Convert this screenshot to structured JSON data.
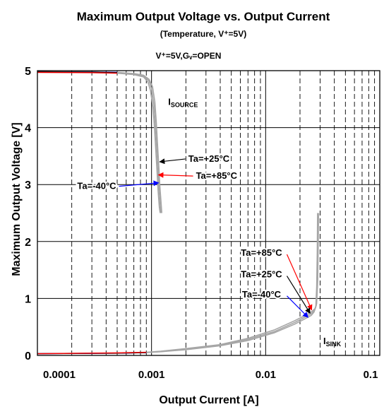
{
  "chart_data": {
    "type": "line",
    "title": "Maximum Output Voltage vs. Output Current",
    "subtitle": "(Temperature, V⁺=5V)",
    "condition": "V⁺=5V,Gᵥ=OPEN",
    "xlabel": "Output Current [A]",
    "ylabel": "Maximum Output Voltage [V]",
    "x_scale": "log",
    "xlim": [
      0.0001,
      0.1
    ],
    "ylim": [
      0,
      5
    ],
    "x_ticks": [
      "0.0001",
      "0.001",
      "0.01",
      "0.1"
    ],
    "y_ticks": [
      "0",
      "1",
      "2",
      "3",
      "4",
      "5"
    ],
    "grid": true,
    "colors": {
      "-40": "#0000ff",
      "+25": "#000000",
      "+85": "#ff0000",
      "curve": "#a6a6a6"
    },
    "series": [
      {
        "name": "Ta=-40°C",
        "group": "ISOURCE",
        "x": [
          0.0001,
          0.0003,
          0.0005,
          0.0007,
          0.00085,
          0.00095,
          0.00102,
          0.00107,
          0.0011,
          0.00113,
          0.00116,
          0.00118,
          0.00121,
          0.00123
        ],
        "y": [
          4.98,
          4.975,
          4.97,
          4.95,
          4.92,
          4.85,
          4.72,
          4.45,
          4.1,
          3.7,
          3.3,
          3.0,
          2.7,
          2.5
        ]
      },
      {
        "name": "Ta=+25°C",
        "group": "ISOURCE",
        "x": [
          0.0001,
          0.0003,
          0.0005,
          0.0007,
          0.00085,
          0.00095,
          0.001,
          0.00105,
          0.00108,
          0.00111,
          0.00114,
          0.00116,
          0.00119,
          0.00121
        ],
        "y": [
          4.98,
          4.975,
          4.965,
          4.94,
          4.91,
          4.82,
          4.68,
          4.4,
          4.05,
          3.65,
          3.25,
          2.95,
          2.65,
          2.5
        ]
      },
      {
        "name": "Ta=+85°C",
        "group": "ISOURCE",
        "x": [
          0.0001,
          0.0003,
          0.0005,
          0.0007,
          0.00085,
          0.00093,
          0.00098,
          0.00103,
          0.00106,
          0.00109,
          0.00112,
          0.00114,
          0.00117,
          0.00119
        ],
        "y": [
          4.97,
          4.965,
          4.955,
          4.93,
          4.89,
          4.8,
          4.65,
          4.35,
          4.0,
          3.6,
          3.2,
          2.9,
          2.6,
          2.5
        ]
      },
      {
        "name": "Ta=-40°C",
        "group": "ISINK",
        "x": [
          0.0001,
          0.0005,
          0.0009,
          0.0012,
          0.002,
          0.004,
          0.007,
          0.012,
          0.018,
          0.022,
          0.025,
          0.0265,
          0.0275,
          0.028,
          0.0283,
          0.0285
        ],
        "y": [
          0.03,
          0.04,
          0.05,
          0.065,
          0.1,
          0.17,
          0.26,
          0.4,
          0.55,
          0.64,
          0.7,
          0.76,
          0.85,
          1.2,
          1.8,
          2.5
        ]
      },
      {
        "name": "Ta=+25°C",
        "group": "ISINK",
        "x": [
          0.0001,
          0.0005,
          0.0009,
          0.0012,
          0.002,
          0.004,
          0.007,
          0.012,
          0.018,
          0.022,
          0.025,
          0.0268,
          0.0278,
          0.0283,
          0.0286,
          0.0288
        ],
        "y": [
          0.03,
          0.04,
          0.05,
          0.07,
          0.11,
          0.18,
          0.28,
          0.42,
          0.58,
          0.67,
          0.73,
          0.79,
          0.88,
          1.25,
          1.85,
          2.5
        ]
      },
      {
        "name": "Ta=+85°C",
        "group": "ISINK",
        "x": [
          0.0001,
          0.0005,
          0.0009,
          0.0012,
          0.002,
          0.004,
          0.007,
          0.012,
          0.018,
          0.022,
          0.025,
          0.027,
          0.028,
          0.0286,
          0.0289,
          0.0291
        ],
        "y": [
          0.03,
          0.045,
          0.055,
          0.075,
          0.12,
          0.19,
          0.3,
          0.45,
          0.61,
          0.7,
          0.76,
          0.82,
          0.91,
          1.3,
          1.9,
          2.5
        ]
      }
    ],
    "curve_labels": [
      {
        "text": "I",
        "sub": "SOURCE",
        "x": 0.0014,
        "y": 4.4
      },
      {
        "text": "I",
        "sub": "SINK",
        "x": 0.032,
        "y": 0.2
      }
    ],
    "annotations": [
      {
        "text": "Ta=+25°C",
        "color": "#000000",
        "label_at": [
          0.0021,
          3.4
        ],
        "arrow_to": [
          0.00118,
          3.4
        ],
        "anchor": "start"
      },
      {
        "text": "Ta=+85°C",
        "color": "#ff0000",
        "label_at": [
          0.00245,
          3.1
        ],
        "arrow_to": [
          0.00115,
          3.17
        ],
        "anchor": "start"
      },
      {
        "text": "Ta=-40°C",
        "color": "#0000ff",
        "label_at": [
          0.00049,
          2.92
        ],
        "arrow_to": [
          0.00115,
          3.03
        ],
        "anchor": "end"
      },
      {
        "text": "Ta=+85°C",
        "color": "#ff0000",
        "label_at": [
          0.0092,
          1.75
        ],
        "arrow_to": [
          0.0253,
          0.8
        ],
        "anchor": "middle"
      },
      {
        "text": "Ta=+25°C",
        "color": "#000000",
        "label_at": [
          0.0092,
          1.37
        ],
        "arrow_to": [
          0.0245,
          0.74
        ],
        "anchor": "middle"
      },
      {
        "text": "Ta=-40°C",
        "color": "#0000ff",
        "label_at": [
          0.0092,
          1.02
        ],
        "arrow_to": [
          0.0235,
          0.67
        ],
        "anchor": "middle"
      }
    ]
  }
}
